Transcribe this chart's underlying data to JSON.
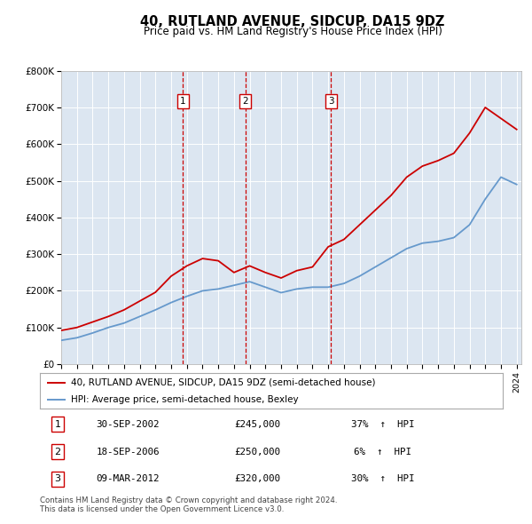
{
  "title": "40, RUTLAND AVENUE, SIDCUP, DA15 9DZ",
  "subtitle": "Price paid vs. HM Land Registry's House Price Index (HPI)",
  "legend_property": "40, RUTLAND AVENUE, SIDCUP, DA15 9DZ (semi-detached house)",
  "legend_hpi": "HPI: Average price, semi-detached house, Bexley",
  "footer": "Contains HM Land Registry data © Crown copyright and database right 2024.\nThis data is licensed under the Open Government Licence v3.0.",
  "sales": [
    {
      "num": 1,
      "date": "30-SEP-2002",
      "price": 245000,
      "pct": "37%",
      "direction": "↑"
    },
    {
      "num": 2,
      "date": "18-SEP-2006",
      "price": 250000,
      "pct": "6%",
      "direction": "↑"
    },
    {
      "num": 3,
      "date": "09-MAR-2012",
      "price": 320000,
      "pct": "30%",
      "direction": "↑"
    }
  ],
  "sale_years": [
    2002.75,
    2006.72,
    2012.19
  ],
  "sale_prices": [
    245000,
    250000,
    320000
  ],
  "property_color": "#cc0000",
  "hpi_color": "#6699cc",
  "vline_color": "#cc0000",
  "plot_bg_color": "#dce6f1",
  "ylim": [
    0,
    800000
  ],
  "yticks": [
    0,
    100000,
    200000,
    300000,
    400000,
    500000,
    600000,
    700000,
    800000
  ],
  "ytick_labels": [
    "£0",
    "£100K",
    "£200K",
    "£300K",
    "£400K",
    "£500K",
    "£600K",
    "£700K",
    "£800K"
  ],
  "hpi_data_years": [
    1995,
    1996,
    1997,
    1998,
    1999,
    2000,
    2001,
    2002,
    2003,
    2004,
    2005,
    2006,
    2007,
    2008,
    2009,
    2010,
    2011,
    2012,
    2013,
    2014,
    2015,
    2016,
    2017,
    2018,
    2019,
    2020,
    2021,
    2022,
    2023,
    2024
  ],
  "hpi_data_values": [
    65000,
    72000,
    85000,
    100000,
    112000,
    130000,
    148000,
    168000,
    185000,
    200000,
    205000,
    215000,
    225000,
    210000,
    195000,
    205000,
    210000,
    210000,
    220000,
    240000,
    265000,
    290000,
    315000,
    330000,
    335000,
    345000,
    380000,
    450000,
    510000,
    490000
  ],
  "prop_data_years": [
    1995,
    1996,
    1997,
    1998,
    1999,
    2000,
    2001,
    2002,
    2003,
    2004,
    2005,
    2006,
    2007,
    2008,
    2009,
    2010,
    2011,
    2012,
    2013,
    2014,
    2015,
    2016,
    2017,
    2018,
    2019,
    2020,
    2021,
    2022,
    2023,
    2024
  ],
  "prop_data_values": [
    92000,
    100000,
    115000,
    130000,
    148000,
    172000,
    196000,
    240000,
    268000,
    288000,
    282000,
    250000,
    268000,
    250000,
    235000,
    255000,
    265000,
    320000,
    340000,
    380000,
    420000,
    460000,
    510000,
    540000,
    555000,
    575000,
    630000,
    700000,
    670000,
    640000
  ]
}
